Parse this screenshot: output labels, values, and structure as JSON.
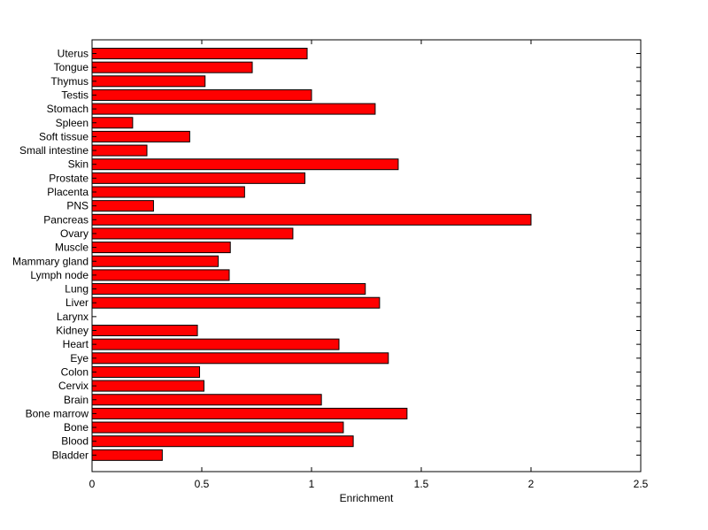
{
  "chart_data": {
    "type": "bar",
    "orientation": "horizontal",
    "title": "",
    "xlabel": "Enrichment",
    "ylabel": "",
    "xlim": [
      0,
      2.5
    ],
    "xticks": [
      0,
      0.5,
      1,
      1.5,
      2,
      2.5
    ],
    "xtick_labels": [
      "0",
      "0.5",
      "1",
      "1.5",
      "2",
      "2.5"
    ],
    "grid": false,
    "bar_color": "#ff0000",
    "edge_color": "#000000",
    "categories": [
      "Uterus",
      "Tongue",
      "Thymus",
      "Testis",
      "Stomach",
      "Spleen",
      "Soft tissue",
      "Small intestine",
      "Skin",
      "Prostate",
      "Placenta",
      "PNS",
      "Pancreas",
      "Ovary",
      "Muscle",
      "Mammary gland",
      "Lymph node",
      "Lung",
      "Liver",
      "Larynx",
      "Kidney",
      "Heart",
      "Eye",
      "Colon",
      "Cervix",
      "Brain",
      "Bone marrow",
      "Bone",
      "Blood",
      "Bladder"
    ],
    "values": [
      0.98,
      0.73,
      0.515,
      1.0,
      1.29,
      0.185,
      0.445,
      0.25,
      1.395,
      0.97,
      0.695,
      0.28,
      2.0,
      0.915,
      0.63,
      0.575,
      0.625,
      1.245,
      1.31,
      0.0,
      0.48,
      1.125,
      1.35,
      0.49,
      0.51,
      1.045,
      1.435,
      1.145,
      1.19,
      0.32
    ]
  }
}
